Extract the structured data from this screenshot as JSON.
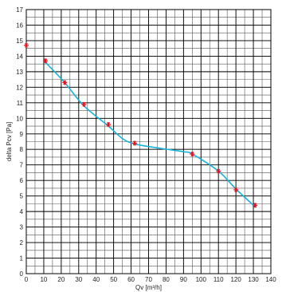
{
  "chart_data": {
    "type": "line",
    "xlabel": "Qv   [m³/h]",
    "ylabel": "delta  Pcv   [Pa]",
    "xlim": [
      0,
      140
    ],
    "ylim": [
      0,
      17
    ],
    "x_major_ticks": [
      0,
      10,
      20,
      30,
      40,
      50,
      60,
      70,
      80,
      90,
      100,
      110,
      120,
      130,
      140
    ],
    "y_major_ticks": [
      0,
      1,
      2,
      3,
      4,
      5,
      6,
      7,
      8,
      9,
      10,
      11,
      12,
      13,
      14,
      15,
      16,
      17
    ],
    "x_minor_step": 5,
    "y_minor_step": 0.5,
    "grid": true,
    "series": [
      {
        "type": "scatter",
        "marker": "asterisk",
        "color": "#e8121e",
        "x": [
          0,
          11,
          22,
          33,
          47,
          62,
          95,
          110,
          120,
          131
        ],
        "y": [
          14.7,
          13.7,
          12.3,
          10.9,
          9.6,
          8.4,
          7.7,
          6.6,
          5.4,
          4.4
        ]
      },
      {
        "type": "line",
        "color": "#1ab3d8",
        "x": [
          11,
          22,
          33,
          47,
          55,
          62,
          75,
          90,
          95,
          110,
          120,
          131
        ],
        "y": [
          13.6,
          12.3,
          10.8,
          9.5,
          8.7,
          8.35,
          8.1,
          7.85,
          7.7,
          6.6,
          5.45,
          4.3
        ]
      }
    ]
  }
}
